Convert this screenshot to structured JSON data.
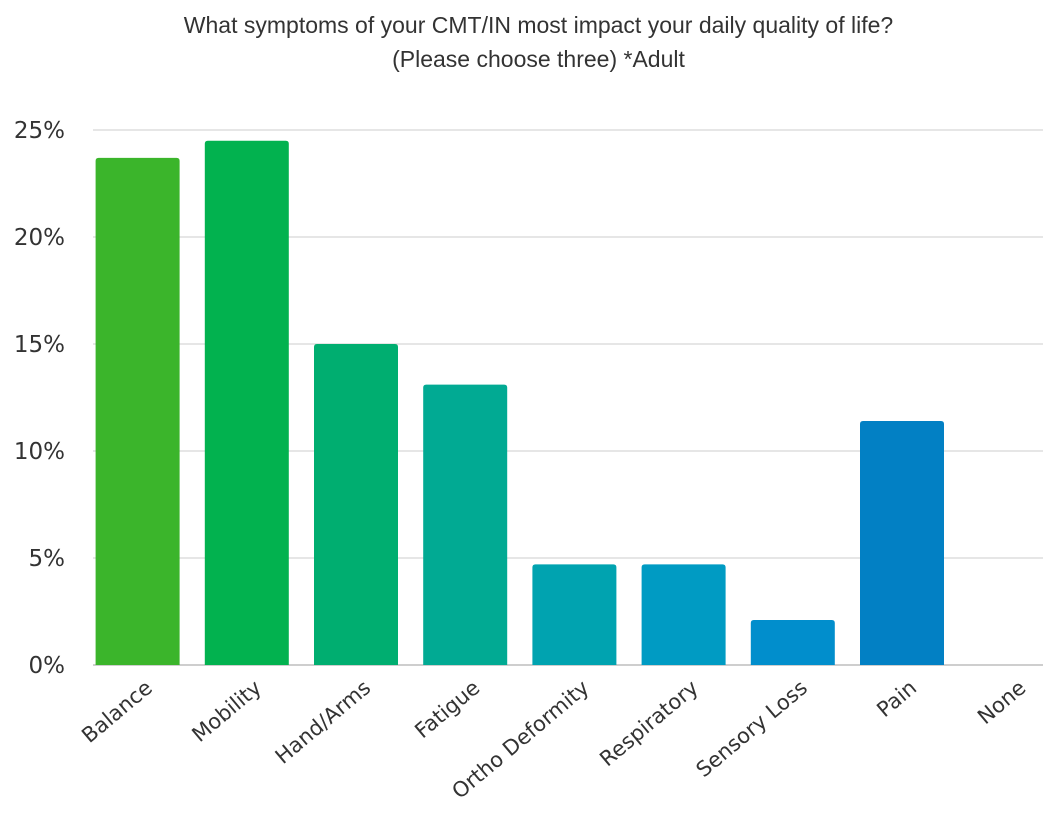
{
  "chart_data": {
    "type": "bar",
    "title": "What symptoms of your CMT/IN most impact your daily quality of life?",
    "subtitle": "(Please choose three) *Adult",
    "xlabel": "",
    "ylabel": "",
    "categories": [
      "Balance",
      "Mobility",
      "Hand/Arms",
      "Fatigue",
      "Ortho Deformity",
      "Respiratory",
      "Sensory Loss",
      "Pain",
      "None"
    ],
    "values": [
      23.7,
      24.5,
      15.0,
      13.1,
      4.7,
      4.7,
      2.1,
      11.4,
      0
    ],
    "colors": [
      "#3bb52b",
      "#02b24f",
      "#00ae70",
      "#01aa93",
      "#00a3b0",
      "#009bc3",
      "#018ecc",
      "#0280c4",
      "#0280c4"
    ],
    "ylim": [
      0,
      25
    ],
    "yticks": [
      0,
      5,
      10,
      15,
      20,
      25
    ],
    "ytick_labels": [
      "0%",
      "5%",
      "10%",
      "15%",
      "20%",
      "25%"
    ],
    "grid": true,
    "legend": "none"
  }
}
